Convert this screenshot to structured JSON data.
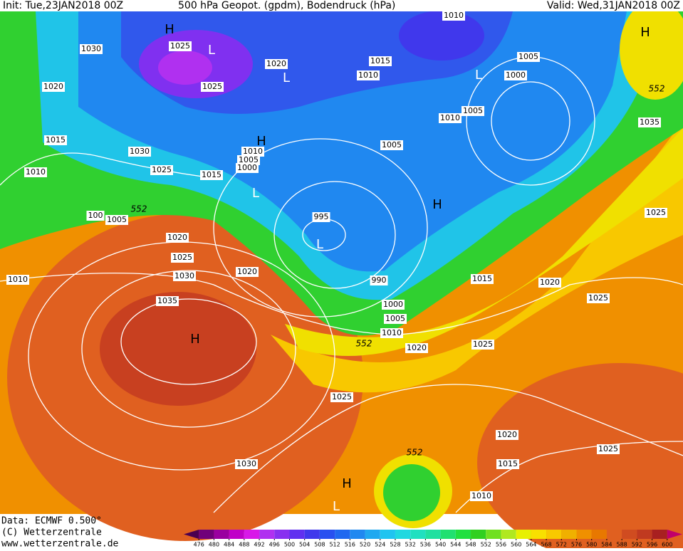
{
  "header": {
    "init": "Init: Tue,23JAN2018 00Z",
    "title": "500 hPa Geopot. (gpdm), Bodendruck (hPa)",
    "valid": "Valid: Wed,31JAN2018 00Z"
  },
  "isobar_labels": [
    1010,
    1030,
    1025,
    1025,
    1020,
    1015,
    1010,
    1005,
    1000,
    1020,
    1010,
    1005,
    1035,
    1015,
    1030,
    1010,
    1005,
    1000,
    1005,
    1025,
    1015,
    1010,
    1005,
    100,
    995,
    1025,
    1020,
    1025,
    1030,
    1020,
    1010,
    990,
    1015,
    1020,
    1025,
    1035,
    1000,
    1005,
    1010,
    1020,
    1025,
    1025,
    1020,
    1025,
    1015,
    1030,
    1010
  ],
  "geopotential_labels": [
    552,
    552,
    552,
    552
  ],
  "pressure_centers": [
    "H",
    "L",
    "L",
    "H",
    "L",
    "L",
    "H",
    "L",
    "H",
    "H",
    "H",
    "L"
  ],
  "footer": {
    "data": "Data: ECMWF   0.500°",
    "copyright": "(C) Wetterzentrale",
    "url": "www.wetterzentrale.de"
  },
  "colorbar": {
    "ticks": [
      476,
      480,
      484,
      488,
      492,
      496,
      500,
      504,
      508,
      512,
      516,
      520,
      524,
      528,
      532,
      536,
      540,
      544,
      548,
      552,
      556,
      560,
      564,
      568,
      572,
      576,
      580,
      584,
      588,
      592,
      596,
      600
    ],
    "colors": [
      "#4a0050",
      "#70007a",
      "#9a00a0",
      "#c000c8",
      "#d818e8",
      "#b030f0",
      "#8830f0",
      "#6030f0",
      "#4038ec",
      "#2850f0",
      "#2068f0",
      "#2088f0",
      "#20a8f0",
      "#20c4f0",
      "#20d8e0",
      "#20e0c0",
      "#20e0a0",
      "#20e070",
      "#20e040",
      "#30d020",
      "#70e020",
      "#b0e820",
      "#e8f000",
      "#f8e000",
      "#f8c800",
      "#f0b000",
      "#f09000",
      "#e87800",
      "#e06020",
      "#d04c20",
      "#c03a20",
      "#a82020",
      "#c0006a"
    ]
  }
}
